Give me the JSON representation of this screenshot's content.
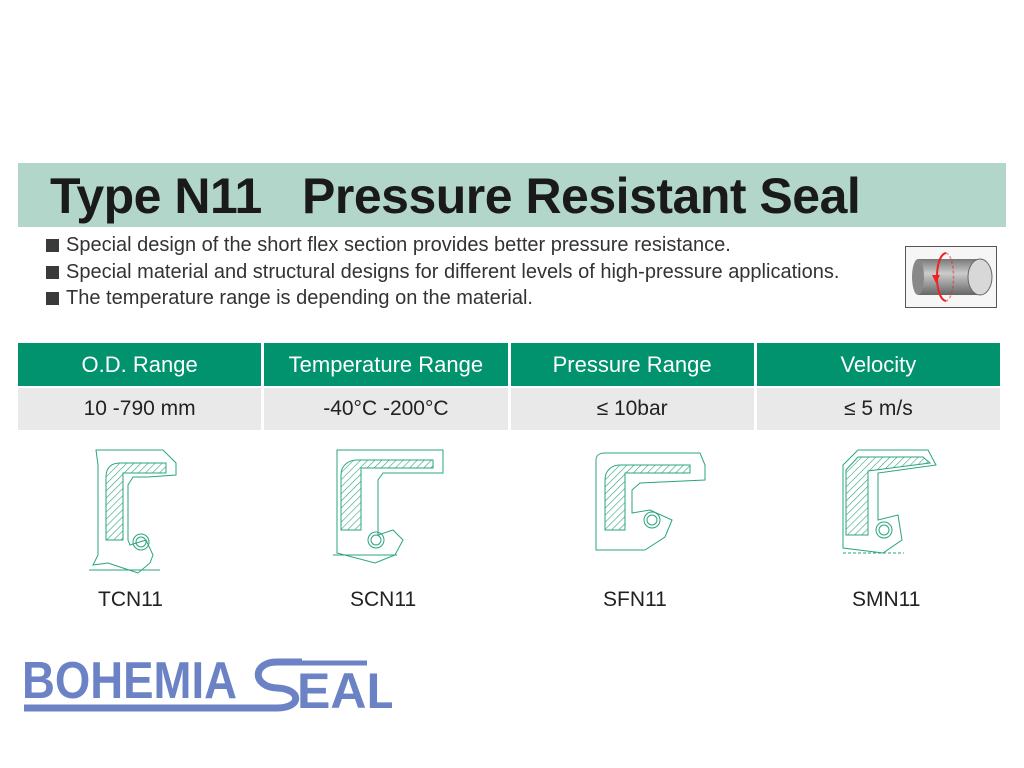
{
  "title": "Type N11   Pressure Resistant Seal",
  "bullets": [
    "Special design of the short flex section provides better pressure resistance.",
    "Special material and structural designs for different levels of high-pressure applications.",
    "The temperature range is depending on the material."
  ],
  "icons": {
    "motion": "rotary-shaft-icon",
    "bullet": "square-bullet-icon"
  },
  "table": {
    "headers": [
      "O.D. Range",
      "Temperature Range",
      "Pressure Range",
      "Velocity"
    ],
    "values": [
      "10 -790 mm",
      "-40°C -200°C",
      "≤ 10bar",
      "≤ 5 m/s"
    ]
  },
  "seals": [
    "TCN11",
    "SCN11",
    "SFN11",
    "SMN11"
  ],
  "logo": "BOHEMIA SEAL",
  "colors": {
    "title_bg": "#b3d6cb",
    "header_bg": "#00936e",
    "row_bg": "#e9e9e9",
    "drawing": "#2aa57f",
    "logo": "#6b82c4"
  }
}
